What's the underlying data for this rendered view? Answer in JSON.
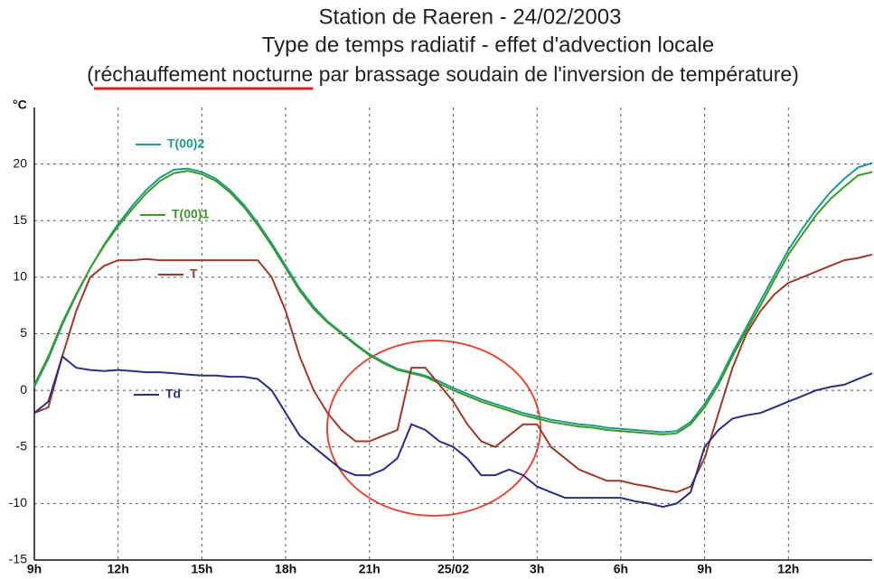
{
  "chart_data": {
    "type": "line",
    "title": [
      "Station de Raeren -  24/02/2003",
      "Type de temps radiatif - effet d'advection locale"
    ],
    "subtitle": {
      "prefix": "(",
      "highlight": "réchauffement nocturne",
      "suffix": " par brassage soudain de l'inversion de température)"
    },
    "ylabel": "°C",
    "x": [
      9,
      9.5,
      10,
      10.5,
      11,
      11.5,
      12,
      12.5,
      13,
      13.5,
      14,
      14.5,
      15,
      15.5,
      16,
      16.5,
      17,
      17.5,
      18,
      18.5,
      19,
      19.5,
      20,
      20.5,
      21,
      21.5,
      22,
      22.5,
      23,
      23.5,
      24,
      24.5,
      25,
      25.5,
      26,
      26.5,
      27,
      27.5,
      28,
      28.5,
      29,
      29.5,
      30,
      30.5,
      31,
      31.5,
      32,
      32.5,
      33,
      33.5,
      34,
      34.5,
      35,
      35.5,
      36,
      36.5,
      37,
      37.5,
      38,
      38.5,
      39
    ],
    "xlim": [
      9,
      39
    ],
    "xticks": [
      {
        "value": 9,
        "label": "9h"
      },
      {
        "value": 12,
        "label": "12h"
      },
      {
        "value": 15,
        "label": "15h"
      },
      {
        "value": 18,
        "label": "18h"
      },
      {
        "value": 21,
        "label": "21h"
      },
      {
        "value": 24,
        "label": "25/02"
      },
      {
        "value": 27,
        "label": "3h"
      },
      {
        "value": 30,
        "label": "6h"
      },
      {
        "value": 33,
        "label": "9h"
      },
      {
        "value": 36,
        "label": "12h"
      }
    ],
    "ylim": [
      -15,
      25
    ],
    "yticks": [
      -15,
      -10,
      -5,
      0,
      5,
      10,
      15,
      20
    ],
    "grid": true,
    "series": [
      {
        "name": "T(00)2",
        "color": "#1f9a8c",
        "values": [
          0.3,
          2.8,
          5.8,
          8.4,
          10.8,
          12.9,
          14.7,
          16.3,
          17.7,
          18.8,
          19.5,
          19.6,
          19.3,
          18.7,
          17.7,
          16.4,
          14.8,
          13,
          11,
          9,
          7.4,
          6.1,
          5.1,
          4.1,
          3.2,
          2.5,
          1.9,
          1.6,
          1.3,
          0.8,
          0.2,
          -0.3,
          -0.8,
          -1.2,
          -1.6,
          -2,
          -2.3,
          -2.6,
          -2.8,
          -3,
          -3.1,
          -3.3,
          -3.4,
          -3.5,
          -3.6,
          -3.7,
          -3.6,
          -2.8,
          -1.2,
          0.8,
          3.3,
          5.6,
          7.9,
          10.2,
          12.4,
          14.3,
          16,
          17.5,
          18.7,
          19.7,
          20.1
        ]
      },
      {
        "name": "T(00)1",
        "color": "#3d9a2a",
        "values": [
          0.5,
          3,
          6,
          8.5,
          10.8,
          12.8,
          14.5,
          16,
          17.4,
          18.5,
          19.2,
          19.4,
          19.1,
          18.5,
          17.5,
          16.2,
          14.6,
          12.8,
          10.8,
          8.8,
          7.2,
          6,
          5,
          4,
          3.1,
          2.4,
          1.8,
          1.5,
          1.2,
          0.6,
          0,
          -0.5,
          -1,
          -1.4,
          -1.8,
          -2.2,
          -2.5,
          -2.8,
          -3,
          -3.2,
          -3.3,
          -3.5,
          -3.6,
          -3.7,
          -3.8,
          -3.9,
          -3.8,
          -3,
          -1.5,
          0.5,
          3,
          5.3,
          7.5,
          9.8,
          12,
          13.8,
          15.5,
          16.9,
          18,
          19,
          19.3
        ]
      },
      {
        "name": "T",
        "color": "#9a3b2b",
        "values": [
          -2,
          -1.5,
          3,
          7,
          10,
          11,
          11.5,
          11.5,
          11.6,
          11.5,
          11.5,
          11.5,
          11.5,
          11.5,
          11.5,
          11.5,
          11.5,
          10,
          7,
          3,
          0,
          -2,
          -3.5,
          -4.5,
          -4.5,
          -4,
          -3.5,
          2,
          2,
          0.5,
          -1,
          -3,
          -4.5,
          -5,
          -4,
          -3,
          -3,
          -5,
          -6,
          -7,
          -7.5,
          -8,
          -8,
          -8.3,
          -8.5,
          -8.8,
          -9,
          -8.5,
          -6,
          -2,
          2,
          5,
          7,
          8.5,
          9.5,
          10,
          10.5,
          11,
          11.5,
          11.7,
          12
        ]
      },
      {
        "name": "Td",
        "color": "#2b2f7e",
        "values": [
          -2,
          -1,
          3,
          2,
          1.8,
          1.7,
          1.8,
          1.7,
          1.6,
          1.6,
          1.5,
          1.4,
          1.3,
          1.3,
          1.2,
          1.2,
          1,
          0,
          -2,
          -4,
          -5,
          -6,
          -7,
          -7.5,
          -7.5,
          -7,
          -6,
          -3,
          -3.5,
          -4.5,
          -5,
          -6,
          -7.5,
          -7.5,
          -7,
          -7.5,
          -8.5,
          -9,
          -9.5,
          -9.5,
          -9.5,
          -9.5,
          -9.5,
          -9.8,
          -10,
          -10.3,
          -10,
          -9,
          -5,
          -3.5,
          -2.5,
          -2.2,
          -2,
          -1.5,
          -1,
          -0.5,
          0,
          0.3,
          0.5,
          1,
          1.5
        ]
      }
    ]
  }
}
